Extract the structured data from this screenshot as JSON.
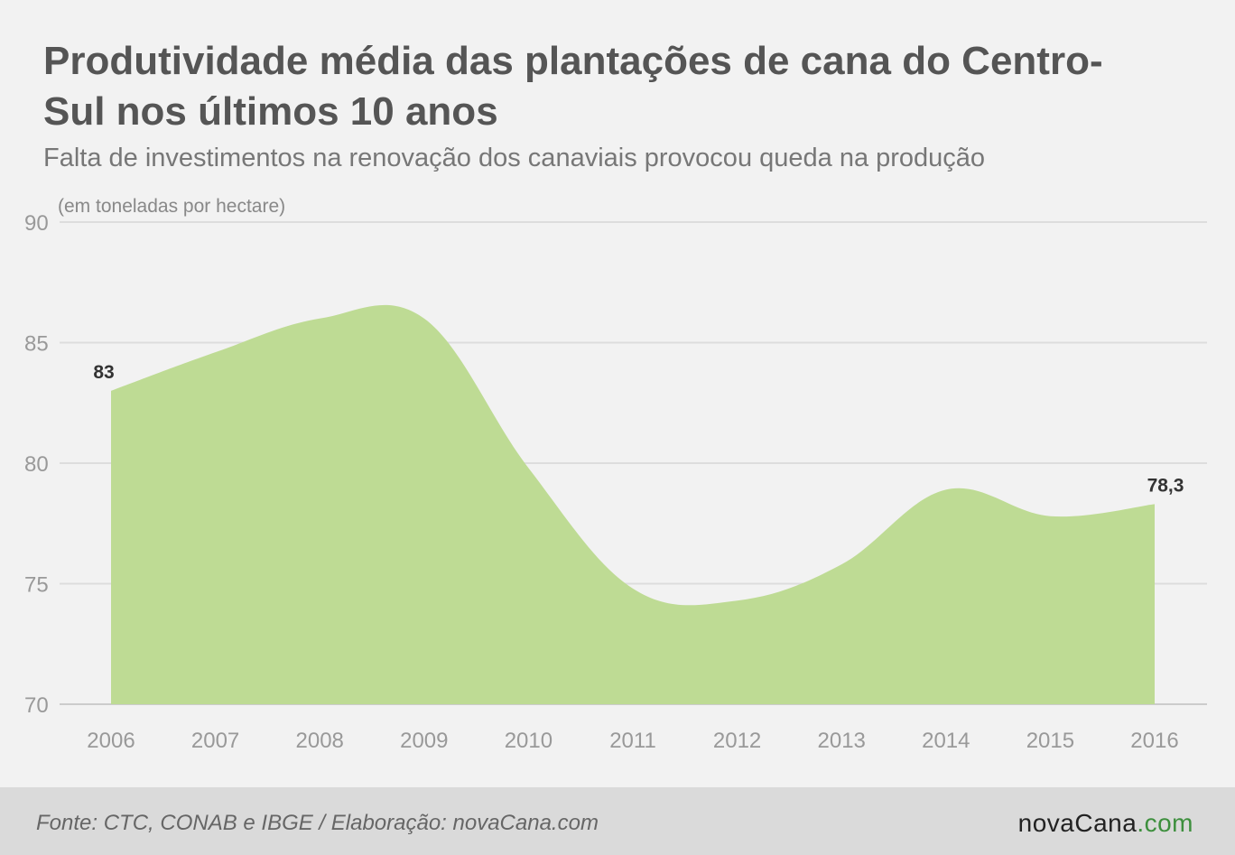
{
  "header": {
    "title": "Produtividade média das plantações de cana do Centro-Sul nos últimos 10 anos",
    "subtitle": "Falta de investimentos na renovação dos canaviais provocou queda na produção"
  },
  "chart_data": {
    "type": "area",
    "title": "Produtividade média das plantações de cana do Centro-Sul nos últimos 10 anos",
    "subtitle": "Falta de investimentos na renovação dos canaviais provocou queda na produção",
    "unit_label": "(em toneladas por hectare)",
    "x": [
      "2006",
      "2007",
      "2008",
      "2009",
      "2010",
      "2011",
      "2012",
      "2013",
      "2014",
      "2015",
      "2016"
    ],
    "values": [
      83,
      84.6,
      86,
      86,
      79.8,
      74.8,
      74.3,
      75.8,
      78.9,
      77.8,
      78.3
    ],
    "ylim": [
      70,
      90
    ],
    "yticks": [
      70,
      75,
      80,
      85,
      90
    ],
    "grid": true,
    "fill_color": "#bedb94",
    "data_labels": [
      {
        "index": 0,
        "text": "83"
      },
      {
        "index": 10,
        "text": "78,3"
      }
    ]
  },
  "footer": {
    "source": "Fonte: CTC, CONAB e IBGE / Elaboração: novaCana.com",
    "logo_main": "novaCana",
    "logo_accent": ".com",
    "accent_color": "#3d8f3d"
  }
}
